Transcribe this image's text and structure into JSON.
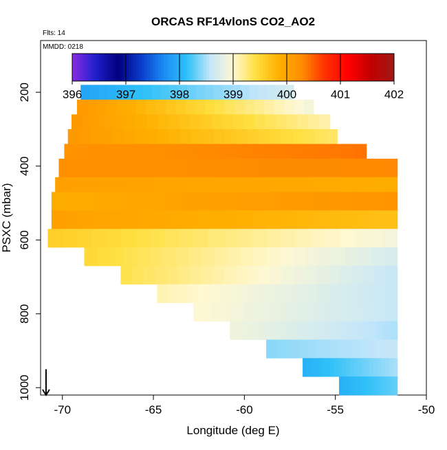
{
  "chart_data": {
    "type": "heatmap",
    "title": "ORCAS RF14vlonS CO2_AO2",
    "annotations": [
      "Flts: 14",
      "MMDD: 0218"
    ],
    "xlabel": "Longitude (deg E)",
    "ylabel": "PSXC (mbar)",
    "xlim": [
      -71.2,
      -50
    ],
    "ylim": [
      1020,
      60
    ],
    "x_ticks": [
      -70,
      -65,
      -60,
      -55,
      -50
    ],
    "x_tick_labels": [
      "-70",
      "-65",
      "-60",
      "-55",
      "-50"
    ],
    "y_ticks": [
      200,
      400,
      600,
      800,
      1000
    ],
    "y_tick_labels": [
      "200",
      "400",
      "600",
      "800",
      "1000"
    ],
    "colorbar": {
      "min": 396,
      "max": 402,
      "ticks": [
        396,
        397,
        398,
        399,
        400,
        401,
        402
      ],
      "tick_labels": [
        "396",
        "397",
        "398",
        "399",
        "400",
        "401",
        "402"
      ],
      "colors": [
        "#8a2be2",
        "#2020cc",
        "#00007f",
        "#0a3ccc",
        "#1b8cf5",
        "#2fc1f8",
        "#c3e6fa",
        "#fff8d2",
        "#ffdf40",
        "#ffb000",
        "#ff8c00",
        "#ff3000",
        "#ff0000",
        "#c00000",
        "#a01818"
      ]
    },
    "bands": [
      {
        "p_top": 180,
        "p_bot": 220,
        "lon_start": -69.0,
        "lon_end": -57.3,
        "val_start": 397.9,
        "val_end": 398.7
      },
      {
        "p_top": 220,
        "p_bot": 260,
        "lon_start": -69.2,
        "lon_end": -56.2,
        "val_start": 400.15,
        "val_end": 398.9
      },
      {
        "p_top": 260,
        "p_bot": 300,
        "lon_start": -69.5,
        "lon_end": -55.3,
        "val_start": 400.15,
        "val_end": 399.1
      },
      {
        "p_top": 300,
        "p_bot": 340,
        "lon_start": -69.7,
        "lon_end": -54.9,
        "val_start": 400.15,
        "val_end": 399.3
      },
      {
        "p_top": 340,
        "p_bot": 380,
        "lon_start": -69.9,
        "lon_end": -53.3,
        "val_start": 400.2,
        "val_end": 400.4
      },
      {
        "p_top": 380,
        "p_bot": 430,
        "lon_start": -70.2,
        "lon_end": -51.6,
        "val_start": 400.25,
        "val_end": 400.3
      },
      {
        "p_top": 430,
        "p_bot": 470,
        "lon_start": -70.4,
        "lon_end": -51.6,
        "val_start": 400.05,
        "val_end": 399.9
      },
      {
        "p_top": 470,
        "p_bot": 520,
        "lon_start": -70.6,
        "lon_end": -51.6,
        "val_start": 399.9,
        "val_end": 400.2
      },
      {
        "p_top": 520,
        "p_bot": 570,
        "lon_start": -70.6,
        "lon_end": -51.6,
        "val_start": 400.05,
        "val_end": 399.7
      },
      {
        "p_top": 570,
        "p_bot": 620,
        "lon_start": -70.8,
        "lon_end": -51.6,
        "val_start": 399.6,
        "val_end": 398.9
      },
      {
        "p_top": 620,
        "p_bot": 670,
        "lon_start": -68.8,
        "lon_end": -51.6,
        "val_start": 399.5,
        "val_end": 398.7
      },
      {
        "p_top": 670,
        "p_bot": 720,
        "lon_start": -66.8,
        "lon_end": -51.6,
        "val_start": 399.4,
        "val_end": 398.6
      },
      {
        "p_top": 720,
        "p_bot": 770,
        "lon_start": -64.8,
        "lon_end": -51.6,
        "val_start": 399.1,
        "val_end": 398.6
      },
      {
        "p_top": 770,
        "p_bot": 820,
        "lon_start": -62.8,
        "lon_end": -51.6,
        "val_start": 399.0,
        "val_end": 398.6
      },
      {
        "p_top": 820,
        "p_bot": 870,
        "lon_start": -60.8,
        "lon_end": -51.6,
        "val_start": 398.9,
        "val_end": 398.5
      },
      {
        "p_top": 870,
        "p_bot": 920,
        "lon_start": -58.8,
        "lon_end": -51.6,
        "val_start": 398.4,
        "val_end": 398.6
      },
      {
        "p_top": 920,
        "p_bot": 970,
        "lon_start": -56.8,
        "lon_end": -51.6,
        "val_start": 398.0,
        "val_end": 398.5
      },
      {
        "p_top": 970,
        "p_bot": 1020,
        "lon_start": -54.8,
        "lon_end": -51.6,
        "val_start": 398.0,
        "val_end": 398.3
      }
    ],
    "arrow": {
      "lon": -70.9,
      "p_from": 950,
      "p_to": 1020
    }
  }
}
